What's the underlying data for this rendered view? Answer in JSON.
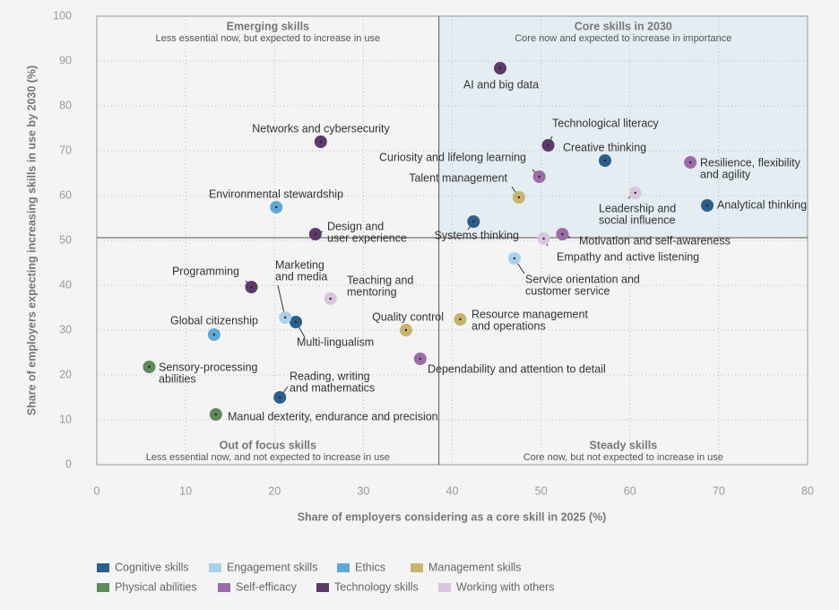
{
  "chart_data": {
    "type": "scatter",
    "xlabel": "Share of employers considering as a core skill in 2025 (%)",
    "ylabel": "Share of employers expecting increasing skills in use by 2030 (%)",
    "xlim": [
      0,
      80
    ],
    "ylim": [
      0,
      100
    ],
    "xticks": [
      0,
      10,
      20,
      30,
      40,
      50,
      60,
      70,
      80
    ],
    "yticks": [
      0,
      10,
      20,
      30,
      40,
      50,
      60,
      70,
      80,
      90,
      100
    ],
    "grid": true,
    "quadrants": {
      "x": 38.5,
      "y": 50.6,
      "shade_color": "#e4edf2",
      "labels": [
        {
          "title": "Emerging skills",
          "subtitle": "Less essential now, but expected to increase in use"
        },
        {
          "title": "Core skills in 2030",
          "subtitle": "Core now and expected to increase in importance"
        },
        {
          "title": "Out of focus skills",
          "subtitle": "Less essential now, and not expected to increase in use"
        },
        {
          "title": "Steady skills",
          "subtitle": "Core now, but not expected to increase in use"
        }
      ]
    },
    "series": [
      {
        "name": "Cognitive skills",
        "color": "#2b5f8e",
        "labels": [
          [
            "Creative thinking"
          ],
          [
            "Analytical thinking"
          ],
          [
            "Systems thinking"
          ],
          [
            "Multi-lingualism"
          ],
          [
            "Reading, writing",
            "and mathematics"
          ]
        ],
        "x": [
          57.2,
          68.7,
          42.4,
          22.4,
          20.6
        ],
        "values": [
          67.8,
          57.8,
          54.2,
          31.8,
          15.0
        ]
      },
      {
        "name": "Engagement skills",
        "color": "#a9d1ea",
        "labels": [
          [
            "Marketing",
            "and media"
          ],
          [
            "Service orientation and",
            "customer service"
          ]
        ],
        "x": [
          21.2,
          47.0
        ],
        "values": [
          32.8,
          46.0
        ]
      },
      {
        "name": "Ethics",
        "color": "#5aa9d8",
        "labels": [
          [
            "Environmental stewardship"
          ],
          [
            "Global citizenship"
          ]
        ],
        "x": [
          20.2,
          13.2
        ],
        "values": [
          57.4,
          29.0
        ]
      },
      {
        "name": "Management skills",
        "color": "#c9b46c",
        "labels": [
          [
            "Talent management"
          ],
          [
            "Resource management",
            "and operations"
          ],
          [
            "Quality control"
          ]
        ],
        "x": [
          47.5,
          40.9,
          34.8
        ],
        "values": [
          59.6,
          32.4,
          30.0
        ]
      },
      {
        "name": "Physical abilities",
        "color": "#5f8a5b",
        "labels": [
          [
            "Sensory-processing",
            "abilities"
          ],
          [
            "Manual dexterity, endurance and precision"
          ]
        ],
        "x": [
          5.9,
          13.4
        ],
        "values": [
          21.8,
          11.2
        ]
      },
      {
        "name": "Self-efficacy",
        "color": "#9c6ba9",
        "labels": [
          [
            "Resilience, flexibility",
            "and agility"
          ],
          [
            "Curiosity and lifelong learning"
          ],
          [
            "Motivation and self-awareness"
          ],
          [
            "Dependability and attention to detail"
          ]
        ],
        "x": [
          66.8,
          49.8,
          52.4,
          36.4
        ],
        "values": [
          67.4,
          64.2,
          51.4,
          23.6
        ]
      },
      {
        "name": "Technology skills",
        "color": "#5c3a6b",
        "labels": [
          [
            "AI and big data"
          ],
          [
            "Networks and cybersecurity"
          ],
          [
            "Technological literacy"
          ],
          [
            "Design and",
            "user experience"
          ],
          [
            "Programming"
          ]
        ],
        "x": [
          45.4,
          25.2,
          50.8,
          24.6,
          17.4
        ],
        "values": [
          88.4,
          72.0,
          71.2,
          51.4,
          39.6
        ]
      },
      {
        "name": "Working with others",
        "color": "#d9c5de",
        "labels": [
          [
            "Leadership and",
            "social influence"
          ],
          [
            "Empathy and active listening"
          ],
          [
            "Teaching and",
            "mentoring"
          ]
        ],
        "x": [
          60.6,
          50.3,
          26.3
        ],
        "values": [
          60.6,
          50.4,
          37.0
        ]
      }
    ]
  }
}
